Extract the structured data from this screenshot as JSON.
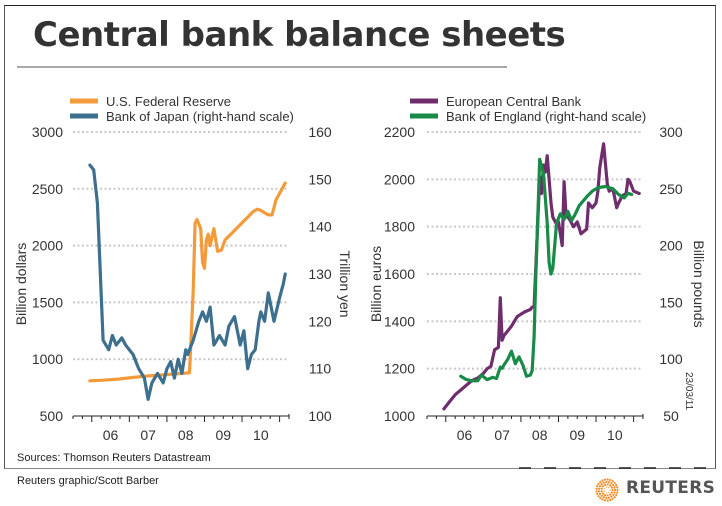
{
  "header": {
    "title": "Central bank balance sheets"
  },
  "footer": {
    "sources": "Sources: Thomson Reuters Datastream",
    "credit": "Reuters graphic/Scott Barber",
    "brand": "REUTERS",
    "date": "23/03/11"
  },
  "colors": {
    "fed": "#f39a3a",
    "boj": "#3d6f8e",
    "ecb": "#6f2d6e",
    "boe": "#1a8a48",
    "grid": "#c8c8c8",
    "text": "#333333",
    "brand_orange": "#f28c28"
  },
  "chart_data": [
    {
      "type": "line",
      "title": "",
      "legend": [
        "U.S. Federal Reserve",
        "Bank of Japan (right-hand scale)"
      ],
      "legend_position": "top-left",
      "xlabel": "",
      "ylabel": "Billion dollars",
      "y2label": "Trillion yen",
      "categories": [
        "06",
        "07",
        "08",
        "09",
        "10"
      ],
      "ylim": [
        500,
        3000
      ],
      "yticks": [
        "3000",
        "2500",
        "2000",
        "1500",
        "1000",
        "500"
      ],
      "y2lim": [
        100,
        160
      ],
      "y2ticks": [
        "160",
        "150",
        "140",
        "130",
        "120",
        "110",
        "100"
      ],
      "grid": true,
      "series": [
        {
          "name": "U.S. Federal Reserve",
          "axis": "left",
          "x": [
            2005.95,
            2006.3,
            2006.7,
            2007.0,
            2007.4,
            2007.8,
            2008.2,
            2008.6,
            2008.7,
            2008.75,
            2008.8,
            2008.9,
            2008.95,
            2009.0,
            2009.05,
            2009.1,
            2009.15,
            2009.25,
            2009.35,
            2009.45,
            2009.55,
            2009.7,
            2009.85,
            2010.0,
            2010.15,
            2010.3,
            2010.4,
            2010.5,
            2010.6,
            2010.7,
            2010.8,
            2010.9,
            2011.15
          ],
          "values": [
            810,
            815,
            825,
            835,
            850,
            860,
            870,
            880,
            1600,
            2200,
            2230,
            2150,
            1850,
            1800,
            2050,
            2100,
            2000,
            2150,
            1950,
            1960,
            2050,
            2100,
            2150,
            2200,
            2250,
            2300,
            2320,
            2310,
            2290,
            2270,
            2270,
            2400,
            2550
          ]
        },
        {
          "name": "Bank of Japan (right-hand scale)",
          "axis": "right",
          "x": [
            2005.95,
            2006.05,
            2006.15,
            2006.3,
            2006.45,
            2006.55,
            2006.65,
            2006.8,
            2006.9,
            2007.0,
            2007.1,
            2007.25,
            2007.4,
            2007.5,
            2007.6,
            2007.75,
            2007.9,
            2008.0,
            2008.1,
            2008.2,
            2008.3,
            2008.4,
            2008.5,
            2008.55,
            2008.7,
            2008.85,
            2008.95,
            2009.05,
            2009.15,
            2009.25,
            2009.4,
            2009.55,
            2009.65,
            2009.8,
            2009.95,
            2010.05,
            2010.15,
            2010.25,
            2010.35,
            2010.45,
            2010.5,
            2010.6,
            2010.7,
            2010.85,
            2011.0,
            2011.1,
            2011.15
          ],
          "values": [
            153,
            152,
            145,
            116,
            114,
            117,
            115,
            116.5,
            115,
            114,
            113,
            110,
            108,
            103.5,
            107,
            109,
            107,
            110,
            111.5,
            108,
            112,
            109,
            114,
            113,
            116,
            120,
            122,
            120,
            123,
            115,
            117,
            115,
            119,
            121,
            115,
            118,
            110,
            113,
            114,
            120,
            122,
            120,
            126,
            120,
            125,
            128,
            130
          ]
        }
      ]
    },
    {
      "type": "line",
      "title": "",
      "legend": [
        "European Central Bank",
        "Bank of England (right-hand scale)"
      ],
      "legend_position": "top-left",
      "xlabel": "",
      "ylabel": "Billion euros",
      "y2label": "Billion pounds",
      "categories": [
        "06",
        "07",
        "08",
        "09",
        "10"
      ],
      "ylim": [
        1000,
        2200
      ],
      "yticks": [
        "2200",
        "2000",
        "1800",
        "1600",
        "1400",
        "1200",
        "1000"
      ],
      "y2lim": [
        50,
        300
      ],
      "y2ticks": [
        "300",
        "250",
        "200",
        "150",
        "100",
        "50"
      ],
      "grid": true,
      "series": [
        {
          "name": "European Central Bank",
          "axis": "left",
          "x": [
            2005.95,
            2006.1,
            2006.25,
            2006.4,
            2006.55,
            2006.7,
            2006.85,
            2007.0,
            2007.1,
            2007.2,
            2007.3,
            2007.4,
            2007.45,
            2007.5,
            2007.55,
            2007.6,
            2007.75,
            2007.9,
            2008.0,
            2008.1,
            2008.25,
            2008.3,
            2008.35,
            2008.5,
            2008.55,
            2008.6,
            2008.65,
            2008.7,
            2008.75,
            2008.8,
            2008.85,
            2008.95,
            2009.0,
            2009.1,
            2009.15,
            2009.2,
            2009.3,
            2009.4,
            2009.5,
            2009.6,
            2009.75,
            2009.8,
            2009.9,
            2010.0,
            2010.05,
            2010.1,
            2010.2,
            2010.3,
            2010.35,
            2010.45,
            2010.55,
            2010.6,
            2010.7,
            2010.8,
            2010.85,
            2010.9,
            2011.0,
            2011.15
          ],
          "values": [
            1030,
            1060,
            1090,
            1110,
            1130,
            1150,
            1160,
            1180,
            1200,
            1210,
            1280,
            1290,
            1500,
            1320,
            1340,
            1350,
            1380,
            1420,
            1430,
            1440,
            1450,
            1460,
            1460,
            2010,
            1940,
            2060,
            2030,
            2100,
            2000,
            1900,
            1840,
            1810,
            1820,
            1720,
            1990,
            1850,
            1830,
            1800,
            1820,
            1770,
            1790,
            1900,
            1880,
            1900,
            1950,
            2050,
            2150,
            1980,
            1950,
            1960,
            1880,
            1900,
            1930,
            1940,
            2000,
            1990,
            1950,
            1940
          ]
        },
        {
          "name": "Bank of England (right-hand scale)",
          "axis": "right",
          "x": [
            2006.4,
            2006.55,
            2006.7,
            2006.85,
            2006.95,
            2007.1,
            2007.25,
            2007.35,
            2007.45,
            2007.5,
            2007.55,
            2007.65,
            2007.75,
            2007.85,
            2007.95,
            2008.05,
            2008.15,
            2008.25,
            2008.3,
            2008.35,
            2008.4,
            2008.5,
            2008.6,
            2008.7,
            2008.75,
            2008.8,
            2008.85,
            2008.95,
            2009.05,
            2009.15,
            2009.25,
            2009.35,
            2009.45,
            2009.55,
            2009.75,
            2009.9,
            2010.05,
            2010.25,
            2010.45,
            2010.6,
            2010.75,
            2010.85,
            2010.95
          ],
          "values": [
            85,
            82,
            81,
            81,
            86,
            82,
            84,
            83,
            93,
            92,
            95,
            100,
            107,
            96,
            102,
            95,
            85,
            86,
            90,
            120,
            175,
            276,
            263,
            220,
            185,
            175,
            180,
            220,
            228,
            223,
            230,
            222,
            228,
            235,
            243,
            248,
            251,
            252,
            250,
            245,
            242,
            246,
            245
          ]
        }
      ]
    }
  ]
}
